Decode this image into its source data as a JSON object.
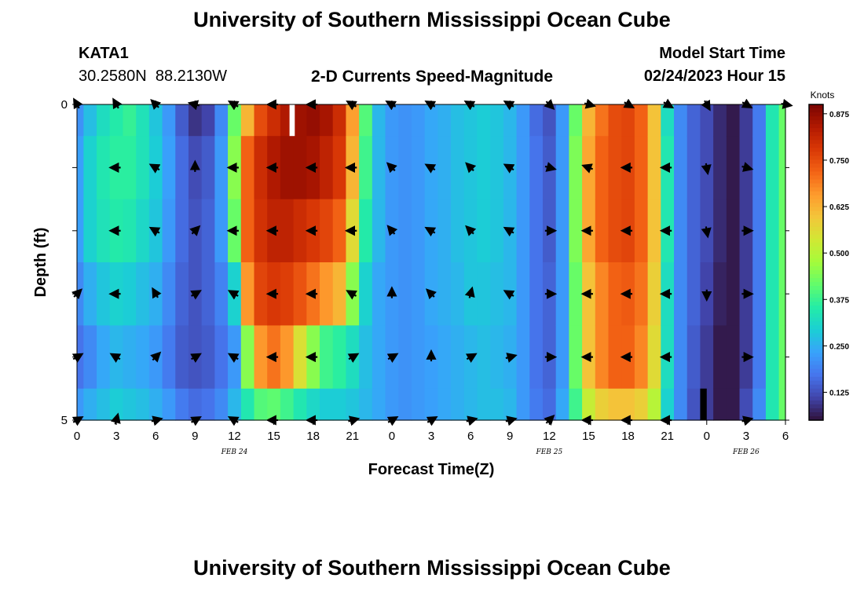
{
  "header": {
    "title": "University of Southern Mississippi Ocean Cube",
    "station_id": "KATA1",
    "coordinates": "30.2580N  88.2130W",
    "plot_title": "2-D Currents Speed-Magnitude",
    "model_start_label": "Model Start Time",
    "model_start_value": "02/24/2023 Hour 15"
  },
  "footer": {
    "title": "University of Southern Mississippi Ocean Cube"
  },
  "chart_data": {
    "type": "heatmap",
    "title": "2-D Currents Speed-Magnitude",
    "xlabel": "Forecast Time(Z)",
    "ylabel": "Depth (ft)",
    "x_tick_labels": [
      "0",
      "3",
      "6",
      "9",
      "12",
      "15",
      "18",
      "21",
      "0",
      "3",
      "6",
      "9",
      "12",
      "15",
      "18",
      "21",
      "0",
      "3",
      "6"
    ],
    "x_hours": [
      0,
      3,
      6,
      9,
      12,
      15,
      18,
      21,
      24,
      27,
      30,
      33,
      36,
      39,
      42,
      45,
      48,
      51,
      54
    ],
    "xlim": [
      0,
      54
    ],
    "y_tick_labels": [
      "0",
      "5"
    ],
    "ylim": [
      0,
      5
    ],
    "date_labels": [
      {
        "text": "FEB 24",
        "hour": 12
      },
      {
        "text": "FEB 25",
        "hour": 36
      },
      {
        "text": "FEB 26",
        "hour": 51
      }
    ],
    "colorbar": {
      "units": "Knots",
      "min": 0.05,
      "max": 0.9,
      "ticks": [
        "0.125",
        "0.250",
        "0.375",
        "0.500",
        "0.625",
        "0.750",
        "0.875"
      ],
      "tick_values": [
        0.125,
        0.25,
        0.375,
        0.5,
        0.625,
        0.75,
        0.875
      ],
      "colormap": [
        "#30123b",
        "#4145ab",
        "#4675ed",
        "#39a2fc",
        "#1bcfd4",
        "#24eca6",
        "#61fc6c",
        "#a4fc3b",
        "#d1e834",
        "#f3c63a",
        "#fe9b2d",
        "#f36315",
        "#d93806",
        "#b11901",
        "#7a0402"
      ]
    },
    "depth_levels": [
      0,
      1,
      2,
      3,
      4,
      5
    ],
    "columns": [
      {
        "hour": 0,
        "speeds": [
          0.21,
          0.23,
          0.23,
          0.2,
          0.17,
          0.22
        ]
      },
      {
        "hour": 1,
        "speeds": [
          0.27,
          0.3,
          0.3,
          0.25,
          0.2,
          0.25
        ]
      },
      {
        "hour": 2,
        "speeds": [
          0.32,
          0.34,
          0.33,
          0.28,
          0.24,
          0.27
        ]
      },
      {
        "hour": 3,
        "speeds": [
          0.35,
          0.36,
          0.35,
          0.3,
          0.26,
          0.29
        ]
      },
      {
        "hour": 4,
        "speeds": [
          0.37,
          0.36,
          0.34,
          0.29,
          0.25,
          0.28
        ]
      },
      {
        "hour": 5,
        "speeds": [
          0.33,
          0.33,
          0.31,
          0.27,
          0.24,
          0.27
        ]
      },
      {
        "hour": 6,
        "speeds": [
          0.28,
          0.29,
          0.28,
          0.25,
          0.22,
          0.25
        ]
      },
      {
        "hour": 7,
        "speeds": [
          0.22,
          0.23,
          0.22,
          0.2,
          0.18,
          0.22
        ]
      },
      {
        "hour": 8,
        "speeds": [
          0.14,
          0.16,
          0.16,
          0.15,
          0.14,
          0.18
        ]
      },
      {
        "hour": 9,
        "speeds": [
          0.09,
          0.12,
          0.13,
          0.13,
          0.13,
          0.16
        ]
      },
      {
        "hour": 10,
        "speeds": [
          0.11,
          0.14,
          0.15,
          0.15,
          0.14,
          0.17
        ]
      },
      {
        "hour": 11,
        "speeds": [
          0.2,
          0.22,
          0.22,
          0.19,
          0.17,
          0.2
        ]
      },
      {
        "hour": 12,
        "speeds": [
          0.42,
          0.45,
          0.42,
          0.3,
          0.22,
          0.26
        ]
      },
      {
        "hour": 13,
        "speeds": [
          0.62,
          0.72,
          0.72,
          0.66,
          0.45,
          0.34
        ]
      },
      {
        "hour": 14,
        "speeds": [
          0.75,
          0.8,
          0.79,
          0.76,
          0.66,
          0.4
        ]
      },
      {
        "hour": 15,
        "speeds": [
          0.8,
          0.84,
          0.82,
          0.78,
          0.7,
          0.41
        ]
      },
      {
        "hour": 16,
        "speeds": [
          0.84,
          0.86,
          0.82,
          0.77,
          0.66,
          0.38
        ]
      },
      {
        "hour": 17,
        "speeds": [
          0.86,
          0.86,
          0.8,
          0.74,
          0.55,
          0.34
        ]
      },
      {
        "hour": 18,
        "speeds": [
          0.87,
          0.85,
          0.78,
          0.7,
          0.45,
          0.31
        ]
      },
      {
        "hour": 19,
        "speeds": [
          0.85,
          0.82,
          0.76,
          0.66,
          0.38,
          0.29
        ]
      },
      {
        "hour": 20,
        "speeds": [
          0.8,
          0.78,
          0.72,
          0.62,
          0.36,
          0.29
        ]
      },
      {
        "hour": 21,
        "speeds": [
          0.65,
          0.62,
          0.56,
          0.45,
          0.32,
          0.28
        ]
      },
      {
        "hour": 22,
        "speeds": [
          0.4,
          0.38,
          0.35,
          0.3,
          0.27,
          0.26
        ]
      },
      {
        "hour": 23,
        "speeds": [
          0.26,
          0.26,
          0.26,
          0.24,
          0.24,
          0.24
        ]
      },
      {
        "hour": 24,
        "speeds": [
          0.22,
          0.22,
          0.22,
          0.22,
          0.22,
          0.22
        ]
      },
      {
        "hour": 25,
        "speeds": [
          0.21,
          0.21,
          0.21,
          0.21,
          0.21,
          0.21
        ]
      },
      {
        "hour": 26,
        "speeds": [
          0.22,
          0.22,
          0.22,
          0.22,
          0.22,
          0.22
        ]
      },
      {
        "hour": 27,
        "speeds": [
          0.24,
          0.24,
          0.24,
          0.24,
          0.23,
          0.23
        ]
      },
      {
        "hour": 28,
        "speeds": [
          0.25,
          0.25,
          0.25,
          0.25,
          0.24,
          0.24
        ]
      },
      {
        "hour": 29,
        "speeds": [
          0.27,
          0.27,
          0.27,
          0.26,
          0.25,
          0.25
        ]
      },
      {
        "hour": 30,
        "speeds": [
          0.28,
          0.28,
          0.28,
          0.28,
          0.26,
          0.26
        ]
      },
      {
        "hour": 31,
        "speeds": [
          0.29,
          0.29,
          0.29,
          0.28,
          0.27,
          0.27
        ]
      },
      {
        "hour": 32,
        "speeds": [
          0.28,
          0.28,
          0.28,
          0.27,
          0.26,
          0.27
        ]
      },
      {
        "hour": 33,
        "speeds": [
          0.26,
          0.26,
          0.26,
          0.26,
          0.25,
          0.26
        ]
      },
      {
        "hour": 34,
        "speeds": [
          0.22,
          0.22,
          0.22,
          0.22,
          0.22,
          0.22
        ]
      },
      {
        "hour": 35,
        "speeds": [
          0.16,
          0.17,
          0.17,
          0.17,
          0.17,
          0.18
        ]
      },
      {
        "hour": 36,
        "speeds": [
          0.13,
          0.14,
          0.14,
          0.15,
          0.15,
          0.16
        ]
      },
      {
        "hour": 37,
        "speeds": [
          0.22,
          0.22,
          0.22,
          0.22,
          0.22,
          0.24
        ]
      },
      {
        "hour": 38,
        "speeds": [
          0.42,
          0.44,
          0.44,
          0.42,
          0.42,
          0.38
        ]
      },
      {
        "hour": 39,
        "speeds": [
          0.62,
          0.64,
          0.64,
          0.6,
          0.6,
          0.52
        ]
      },
      {
        "hour": 40,
        "speeds": [
          0.7,
          0.72,
          0.72,
          0.68,
          0.68,
          0.58
        ]
      },
      {
        "hour": 41,
        "speeds": [
          0.75,
          0.75,
          0.75,
          0.72,
          0.72,
          0.6
        ]
      },
      {
        "hour": 42,
        "speeds": [
          0.76,
          0.76,
          0.76,
          0.73,
          0.72,
          0.6
        ]
      },
      {
        "hour": 43,
        "speeds": [
          0.72,
          0.72,
          0.72,
          0.7,
          0.68,
          0.58
        ]
      },
      {
        "hour": 44,
        "speeds": [
          0.6,
          0.6,
          0.6,
          0.58,
          0.56,
          0.5
        ]
      },
      {
        "hour": 45,
        "speeds": [
          0.32,
          0.34,
          0.34,
          0.32,
          0.32,
          0.3
        ]
      },
      {
        "hour": 46,
        "speeds": [
          0.2,
          0.2,
          0.2,
          0.2,
          0.2,
          0.2
        ]
      },
      {
        "hour": 47,
        "speeds": [
          0.15,
          0.15,
          0.15,
          0.15,
          0.14,
          0.13
        ]
      },
      {
        "hour": 48,
        "speeds": [
          0.12,
          0.12,
          0.12,
          0.11,
          0.1,
          0.1
        ]
      },
      {
        "hour": 49,
        "speeds": [
          0.08,
          0.08,
          0.08,
          0.07,
          0.06,
          0.06
        ]
      },
      {
        "hour": 50,
        "speeds": [
          0.06,
          0.06,
          0.06,
          0.06,
          0.06,
          0.06
        ]
      },
      {
        "hour": 51,
        "speeds": [
          0.1,
          0.1,
          0.1,
          0.1,
          0.1,
          0.12
        ]
      },
      {
        "hour": 52,
        "speeds": [
          0.18,
          0.18,
          0.18,
          0.18,
          0.18,
          0.2
        ]
      },
      {
        "hour": 53,
        "speeds": [
          0.34,
          0.34,
          0.34,
          0.34,
          0.34,
          0.34
        ]
      },
      {
        "hour": 54,
        "speeds": [
          0.42,
          0.42,
          0.42,
          0.42,
          0.42,
          0.42
        ]
      }
    ],
    "no_data": [
      {
        "hour_start": 16.2,
        "hour_end": 16.6,
        "depth_start": 0,
        "depth_end": 0.5,
        "color": "#ffffff"
      },
      {
        "hour_start": 47.5,
        "hour_end": 48.0,
        "depth_start": 4.5,
        "depth_end": 5,
        "color": "#000000"
      }
    ],
    "vector_rows": [
      {
        "depth": 0,
        "vectors": [
          [
            0,
            330
          ],
          [
            3,
            330
          ],
          [
            6,
            315
          ],
          [
            9,
            285
          ],
          [
            12,
            300
          ],
          [
            15,
            270
          ],
          [
            18,
            270
          ],
          [
            21,
            300
          ],
          [
            24,
            300
          ],
          [
            27,
            300
          ],
          [
            30,
            300
          ],
          [
            33,
            300
          ],
          [
            36,
            135
          ],
          [
            39,
            105
          ],
          [
            42,
            120
          ],
          [
            45,
            120
          ],
          [
            48,
            150
          ],
          [
            51,
            120
          ],
          [
            54,
            100
          ]
        ]
      },
      {
        "depth": 1,
        "vectors": [
          [
            3,
            270
          ],
          [
            6,
            300
          ],
          [
            9,
            0
          ],
          [
            12,
            270
          ],
          [
            15,
            270
          ],
          [
            18,
            270
          ],
          [
            21,
            270
          ],
          [
            24,
            315
          ],
          [
            27,
            300
          ],
          [
            30,
            315
          ],
          [
            33,
            300
          ],
          [
            36,
            105
          ],
          [
            39,
            290
          ],
          [
            42,
            270
          ],
          [
            45,
            270
          ],
          [
            48,
            170
          ],
          [
            51,
            105
          ]
        ]
      },
      {
        "depth": 2,
        "vectors": [
          [
            3,
            270
          ],
          [
            6,
            300
          ],
          [
            9,
            45
          ],
          [
            12,
            270
          ],
          [
            15,
            270
          ],
          [
            18,
            270
          ],
          [
            21,
            270
          ],
          [
            24,
            320
          ],
          [
            27,
            300
          ],
          [
            30,
            315
          ],
          [
            33,
            300
          ],
          [
            36,
            90
          ],
          [
            39,
            270
          ],
          [
            42,
            270
          ],
          [
            45,
            270
          ],
          [
            48,
            170
          ],
          [
            51,
            90
          ]
        ]
      },
      {
        "depth": 3,
        "vectors": [
          [
            0,
            45
          ],
          [
            3,
            270
          ],
          [
            6,
            330
          ],
          [
            9,
            60
          ],
          [
            12,
            300
          ],
          [
            15,
            270
          ],
          [
            18,
            270
          ],
          [
            21,
            300
          ],
          [
            24,
            0
          ],
          [
            27,
            315
          ],
          [
            30,
            15
          ],
          [
            33,
            300
          ],
          [
            36,
            90
          ],
          [
            39,
            270
          ],
          [
            42,
            270
          ],
          [
            45,
            270
          ],
          [
            48,
            180
          ],
          [
            51,
            90
          ]
        ]
      },
      {
        "depth": 4,
        "vectors": [
          [
            0,
            60
          ],
          [
            3,
            300
          ],
          [
            6,
            45
          ],
          [
            9,
            60
          ],
          [
            12,
            300
          ],
          [
            15,
            270
          ],
          [
            18,
            270
          ],
          [
            21,
            60
          ],
          [
            24,
            60
          ],
          [
            27,
            0
          ],
          [
            30,
            60
          ],
          [
            33,
            75
          ],
          [
            36,
            90
          ],
          [
            39,
            270
          ],
          [
            42,
            270
          ],
          [
            45,
            270
          ],
          [
            51,
            90
          ]
        ]
      },
      {
        "depth": 5,
        "vectors": [
          [
            0,
            60
          ],
          [
            3,
            15
          ],
          [
            6,
            75
          ],
          [
            9,
            60
          ],
          [
            12,
            300
          ],
          [
            15,
            270
          ],
          [
            18,
            270
          ],
          [
            21,
            75
          ],
          [
            24,
            60
          ],
          [
            27,
            60
          ],
          [
            30,
            75
          ],
          [
            33,
            75
          ],
          [
            36,
            45
          ],
          [
            39,
            270
          ],
          [
            42,
            270
          ],
          [
            45,
            270
          ],
          [
            51,
            75
          ]
        ]
      }
    ]
  }
}
